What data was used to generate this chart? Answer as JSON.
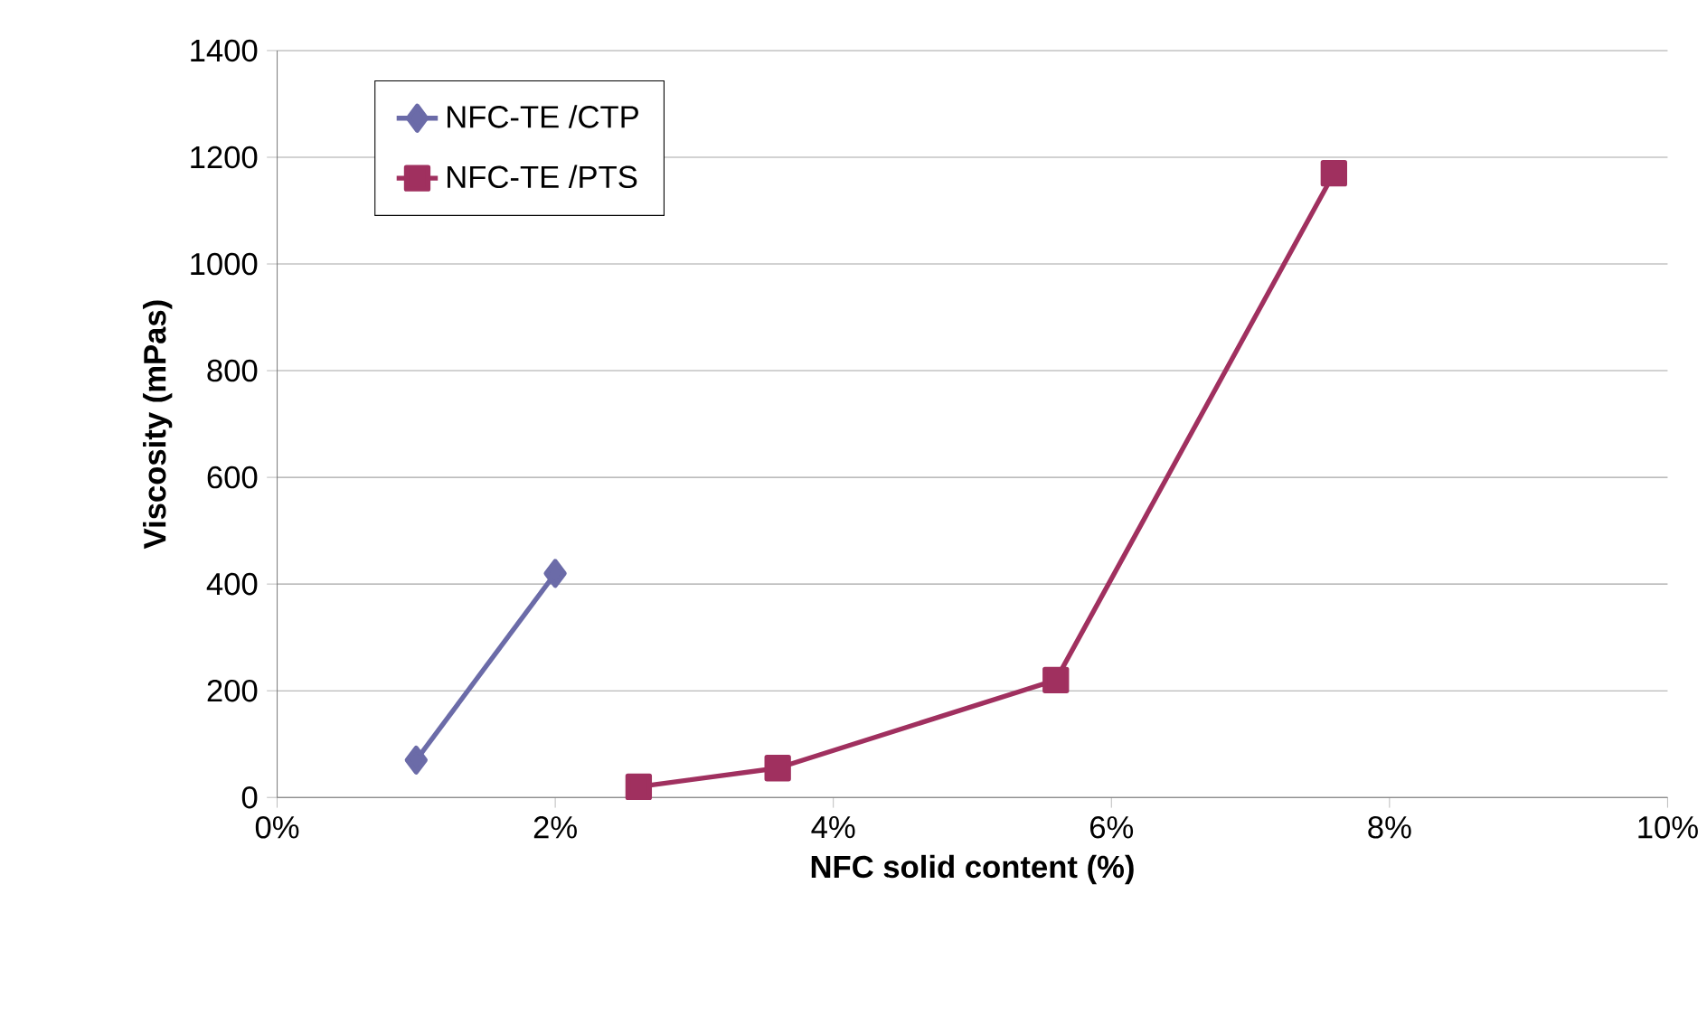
{
  "chart_data": {
    "type": "line",
    "xlabel": "NFC solid content (%)",
    "ylabel": "Viscosity (mPas)",
    "xlim": [
      0,
      10
    ],
    "ylim": [
      0,
      1400
    ],
    "xticks": [
      {
        "value": 0,
        "label": "0%"
      },
      {
        "value": 2,
        "label": "2%"
      },
      {
        "value": 4,
        "label": "4%"
      },
      {
        "value": 6,
        "label": "6%"
      },
      {
        "value": 8,
        "label": "8%"
      },
      {
        "value": 10,
        "label": "10%"
      }
    ],
    "yticks": [
      0,
      200,
      400,
      600,
      800,
      1000,
      1200,
      1400
    ],
    "grid": "y",
    "legend": "top left",
    "series": [
      {
        "name": "NFC-TE /CTP",
        "color": "#6b6ba8",
        "marker": "diamond",
        "x": [
          1,
          2
        ],
        "values": [
          70,
          420
        ]
      },
      {
        "name": "NFC-TE /PTS",
        "color": "#a0305f",
        "marker": "square",
        "x": [
          2.6,
          3.6,
          5.6,
          7.6
        ],
        "values": [
          20,
          55,
          220,
          1170
        ]
      }
    ]
  }
}
